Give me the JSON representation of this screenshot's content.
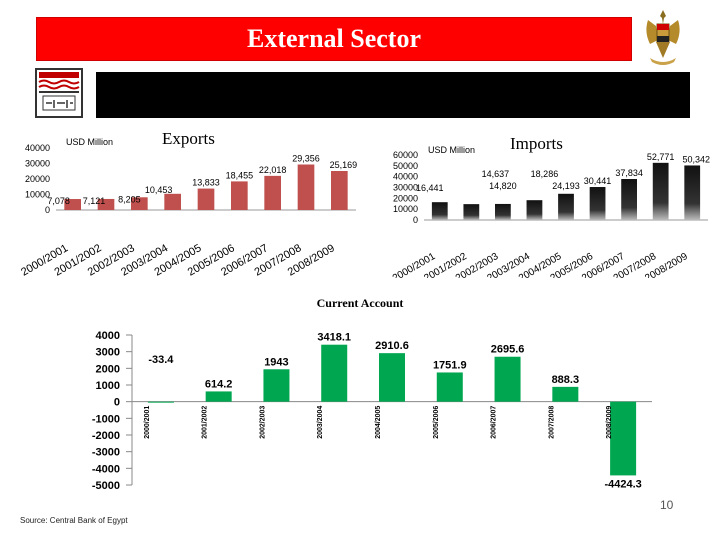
{
  "header": {
    "title": "External Sector"
  },
  "footer": {
    "source": "Source: Central Bank of Egypt",
    "page_number": "10"
  },
  "colors": {
    "title_red": "#ff0000",
    "bar_red": "#c0504d",
    "bar_green": "#00a650"
  },
  "chart_data": [
    {
      "type": "bar",
      "title": "Exports",
      "unit_label": "USD Million",
      "categories": [
        "2000/2001",
        "2001/2002",
        "2002/2003",
        "2003/2004",
        "2004/2005",
        "2005/2006",
        "2006/2007",
        "2007/2008",
        "2008/2009"
      ],
      "values": [
        7078,
        7121,
        8205,
        10453,
        13833,
        18455,
        22018,
        29356,
        25169
      ],
      "data_labels": [
        "7,078",
        "7,121",
        "8,205",
        "10,453",
        "13,833",
        "18,455",
        "22,018",
        "29,356",
        "25,169"
      ],
      "yticks": [
        "0",
        "10000",
        "20000",
        "30000",
        "40000"
      ],
      "ylim": [
        0,
        40000
      ]
    },
    {
      "type": "bar",
      "title": "Imports",
      "unit_label": "USD Million",
      "categories": [
        "2000/2001",
        "2001/2002",
        "2002/2003",
        "2003/2004",
        "2004/2005",
        "2005/2006",
        "2006/2007",
        "2007/2008",
        "2008/2009"
      ],
      "values": [
        16441,
        14637,
        14820,
        18286,
        24193,
        30441,
        37834,
        52771,
        50342
      ],
      "data_labels": [
        "16,441",
        "14,637",
        "14,820",
        "18,286",
        "24,193",
        "30,441",
        "37,834",
        "52,771",
        "50,342"
      ],
      "yticks": [
        "0",
        "10000",
        "20000",
        "30000",
        "40000",
        "50000",
        "60000"
      ],
      "ylim": [
        0,
        60000
      ]
    },
    {
      "type": "bar",
      "title": "Current Account",
      "categories": [
        "2000/2001",
        "2001/2002",
        "2002/2003",
        "2003/2004",
        "2004/2005",
        "2005/2006",
        "2006/2007",
        "2007/2008",
        "2008/2009"
      ],
      "values": [
        -33.4,
        614.2,
        1943,
        3418.1,
        2910.6,
        1751.9,
        2695.6,
        888.3,
        -4424.3
      ],
      "data_labels": [
        "-33.4",
        "614.2",
        "1943",
        "3418.1",
        "2910.6",
        "1751.9",
        "2695.6",
        "888.3",
        "-4424.3"
      ],
      "yticks": [
        "-5000",
        "-4000",
        "-3000",
        "-2000",
        "-1000",
        "0",
        "1000",
        "2000",
        "3000",
        "4000"
      ],
      "ylim": [
        -5000,
        4000
      ]
    }
  ]
}
